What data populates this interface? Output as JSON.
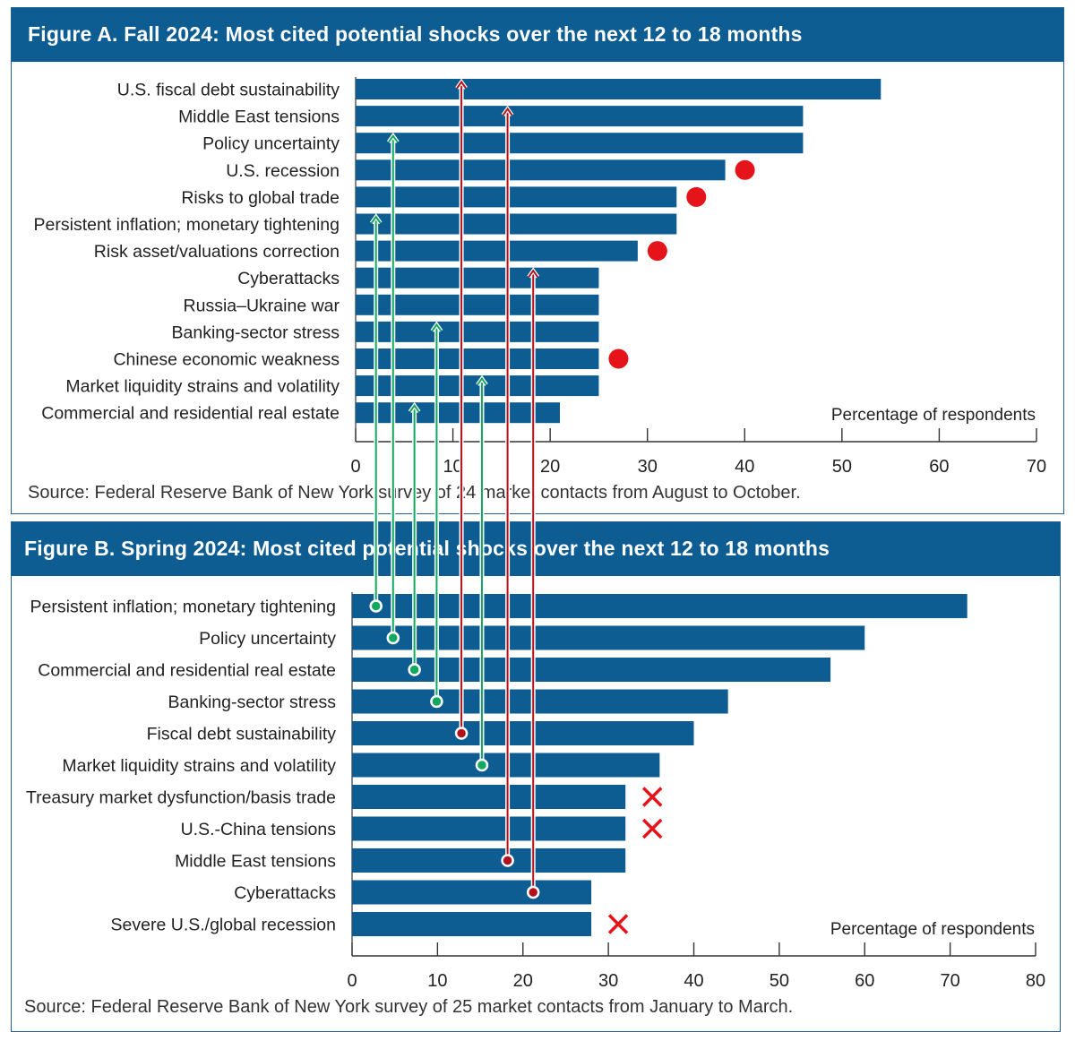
{
  "chart_data": [
    {
      "type": "bar",
      "orientation": "horizontal",
      "title": "Figure A. Fall 2024: Most cited potential shocks over the next 12 to 18 months",
      "source": "Source: Federal Reserve Bank of New York survey of 24 market contacts from August to October.",
      "axis_label": "Percentage of respondents",
      "xlim": [
        0,
        70
      ],
      "ticks": [
        0,
        10,
        20,
        30,
        40,
        50,
        60,
        70
      ],
      "categories": [
        "U.S. fiscal debt sustainability",
        "Middle East tensions",
        "Policy uncertainty",
        "U.S. recession",
        "Risks to global trade",
        "Persistent inflation; monetary tightening",
        "Risk asset/valuations correction",
        "Cyberattacks",
        "Russia–Ukraine war",
        "Banking-sector stress",
        "Chinese economic weakness",
        "Market liquidity strains and volatility",
        "Commercial and residential real estate"
      ],
      "values": [
        54,
        46,
        46,
        38,
        33,
        33,
        29,
        25,
        25,
        25,
        25,
        25,
        21
      ],
      "new_entries": [
        "U.S. recession",
        "Risks to global trade",
        "Risk asset/valuations correction",
        "Chinese economic weakness"
      ]
    },
    {
      "type": "bar",
      "orientation": "horizontal",
      "title": "Figure B. Spring 2024: Most cited potential shocks over the next 12 to 18 months",
      "source": "Source: Federal Reserve Bank of New York survey of 25 market contacts from January to March.",
      "axis_label": "Percentage of respondents",
      "xlim": [
        0,
        80
      ],
      "ticks": [
        0,
        10,
        20,
        30,
        40,
        50,
        60,
        70,
        80
      ],
      "categories": [
        "Persistent inflation; monetary tightening",
        "Policy uncertainty",
        "Commercial and residential real estate",
        "Banking-sector stress",
        "Fiscal debt sustainability",
        "Market liquidity strains and volatility",
        "Treasury market dysfunction/basis trade",
        "U.S.-China tensions",
        "Middle East tensions",
        "Cyberattacks",
        "Severe U.S./global recession"
      ],
      "values": [
        72,
        60,
        56,
        44,
        40,
        36,
        32,
        32,
        32,
        28,
        28
      ],
      "dropped_entries": [
        "Treasury market dysfunction/basis trade",
        "U.S.-China tensions",
        "Severe U.S./global recession"
      ]
    }
  ],
  "links": [
    {
      "from": "Persistent inflation; monetary tightening",
      "to": "Persistent inflation; monetary tightening",
      "x_b": 2.8,
      "direction": "down"
    },
    {
      "from": "Policy uncertainty",
      "to": "Policy uncertainty",
      "x_b": 4.8,
      "direction": "down"
    },
    {
      "from": "Commercial and residential real estate",
      "to": "Commercial and residential real estate",
      "x_b": 7.3,
      "direction": "down"
    },
    {
      "from": "Banking-sector stress",
      "to": "Banking-sector stress",
      "x_b": 9.9,
      "direction": "down"
    },
    {
      "from": "Fiscal debt sustainability",
      "to": "U.S. fiscal debt sustainability",
      "x_b": 12.8,
      "direction": "up"
    },
    {
      "from": "Market liquidity strains and volatility",
      "to": "Market liquidity strains and volatility",
      "x_b": 15.2,
      "direction": "down"
    },
    {
      "from": "Middle East tensions",
      "to": "Middle East tensions",
      "x_b": 18.2,
      "direction": "up"
    },
    {
      "from": "Cyberattacks",
      "to": "Cyberattacks",
      "x_b": 21.2,
      "direction": "up"
    }
  ],
  "colors": {
    "bar": "#0d5c92",
    "up": "#b2121c",
    "down": "#13a862",
    "marker": "#e5141b",
    "title_bg": "#0d5c92"
  }
}
